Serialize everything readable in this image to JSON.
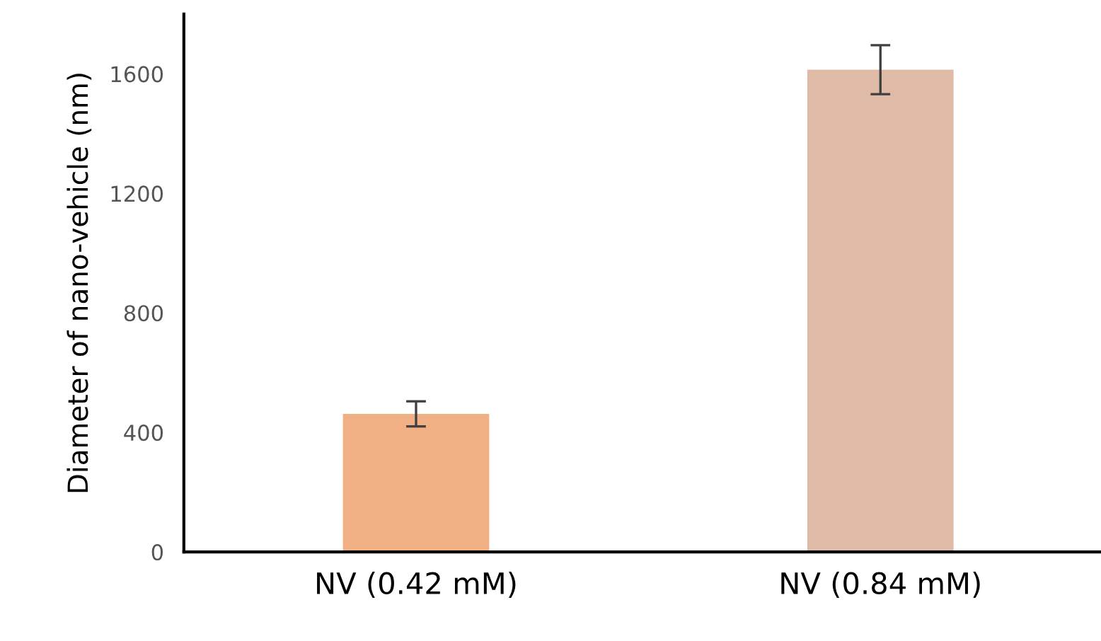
{
  "chart_data": {
    "type": "bar",
    "ylabel": "Diameter of nano-vehicle (nm)",
    "categories": [
      "NV (0.42 mM)",
      "NV (0.84 mM)"
    ],
    "values": [
      462,
      1614
    ],
    "errors": [
      42,
      82
    ],
    "colors": [
      "#f0b084",
      "#dfbaa6"
    ],
    "ylim": [
      0,
      1800
    ],
    "yticks": [
      0,
      400,
      800,
      1200,
      1600
    ],
    "grid": false
  }
}
